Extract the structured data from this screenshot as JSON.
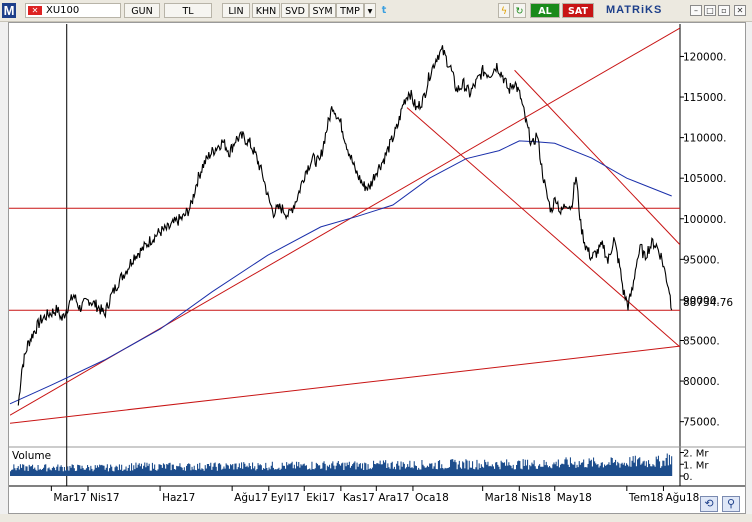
{
  "toolbar": {
    "logo": "M",
    "symbol": "XU100",
    "buttons": [
      "GUN",
      "TL",
      "LIN",
      "KHN",
      "SVD",
      "SYM",
      "TMP"
    ],
    "al": "AL",
    "sat": "SAT",
    "brand": "MATRiKS",
    "colors": {
      "buy": "#1a8a1a",
      "sell": "#c81414",
      "brand": "#1d3f8a"
    }
  },
  "chart_data": {
    "type": "line",
    "series": [
      {
        "kind": "price",
        "color": "#000000",
        "points": [
          [
            "2017-02-01",
            77000
          ],
          [
            "2017-02-04",
            81500
          ],
          [
            "2017-02-09",
            84500
          ],
          [
            "2017-02-14",
            86000
          ],
          [
            "2017-02-20",
            87500
          ],
          [
            "2017-02-27",
            88300
          ],
          [
            "2017-03-06",
            88800
          ],
          [
            "2017-03-10",
            87600
          ],
          [
            "2017-03-15",
            89200
          ],
          [
            "2017-03-20",
            90600
          ],
          [
            "2017-03-25",
            89000
          ],
          [
            "2017-04-02",
            90000
          ],
          [
            "2017-04-10",
            89100
          ],
          [
            "2017-04-15",
            88200
          ],
          [
            "2017-04-20",
            90300
          ],
          [
            "2017-04-27",
            92300
          ],
          [
            "2017-05-04",
            93800
          ],
          [
            "2017-05-10",
            95400
          ],
          [
            "2017-05-17",
            96200
          ],
          [
            "2017-05-24",
            97400
          ],
          [
            "2017-06-01",
            98400
          ],
          [
            "2017-06-08",
            98800
          ],
          [
            "2017-06-14",
            99600
          ],
          [
            "2017-06-21",
            100200
          ],
          [
            "2017-06-27",
            101500
          ],
          [
            "2017-07-02",
            104500
          ],
          [
            "2017-07-07",
            106500
          ],
          [
            "2017-07-13",
            107900
          ],
          [
            "2017-07-18",
            108700
          ],
          [
            "2017-07-24",
            109500
          ],
          [
            "2017-07-30",
            108200
          ],
          [
            "2017-08-04",
            109800
          ],
          [
            "2017-08-10",
            110100
          ],
          [
            "2017-08-16",
            109300
          ],
          [
            "2017-08-21",
            107800
          ],
          [
            "2017-08-27",
            105300
          ],
          [
            "2017-09-01",
            102300
          ],
          [
            "2017-09-05",
            100800
          ],
          [
            "2017-09-11",
            101400
          ],
          [
            "2017-09-18",
            100400
          ],
          [
            "2017-09-25",
            102600
          ],
          [
            "2017-10-02",
            105800
          ],
          [
            "2017-10-08",
            107400
          ],
          [
            "2017-10-14",
            106900
          ],
          [
            "2017-10-19",
            110400
          ],
          [
            "2017-10-25",
            114000
          ],
          [
            "2017-11-01",
            111700
          ],
          [
            "2017-11-06",
            109100
          ],
          [
            "2017-11-13",
            106000
          ],
          [
            "2017-11-20",
            104100
          ],
          [
            "2017-11-25",
            103800
          ],
          [
            "2017-12-01",
            105900
          ],
          [
            "2017-12-07",
            107200
          ],
          [
            "2017-12-14",
            109600
          ],
          [
            "2017-12-19",
            111400
          ],
          [
            "2017-12-24",
            114300
          ],
          [
            "2017-12-29",
            115700
          ],
          [
            "2018-01-04",
            113500
          ],
          [
            "2018-01-10",
            114800
          ],
          [
            "2018-01-15",
            117700
          ],
          [
            "2018-01-22",
            120200
          ],
          [
            "2018-01-26",
            120700
          ],
          [
            "2018-02-02",
            118500
          ],
          [
            "2018-02-07",
            115800
          ],
          [
            "2018-02-13",
            116600
          ],
          [
            "2018-02-18",
            115400
          ],
          [
            "2018-02-24",
            116900
          ],
          [
            "2018-03-01",
            118200
          ],
          [
            "2018-03-07",
            117800
          ],
          [
            "2018-03-13",
            118900
          ],
          [
            "2018-03-18",
            117600
          ],
          [
            "2018-03-23",
            115800
          ],
          [
            "2018-03-28",
            116900
          ],
          [
            "2018-04-02",
            115000
          ],
          [
            "2018-04-07",
            111700
          ],
          [
            "2018-04-12",
            108900
          ],
          [
            "2018-04-16",
            110500
          ],
          [
            "2018-04-20",
            106300
          ],
          [
            "2018-04-24",
            103000
          ],
          [
            "2018-04-28",
            101000
          ],
          [
            "2018-05-02",
            102700
          ],
          [
            "2018-05-06",
            100700
          ],
          [
            "2018-05-11",
            102000
          ],
          [
            "2018-05-15",
            101400
          ],
          [
            "2018-05-19",
            105300
          ],
          [
            "2018-05-23",
            99200
          ],
          [
            "2018-05-27",
            96700
          ],
          [
            "2018-06-01",
            95200
          ],
          [
            "2018-06-06",
            95900
          ],
          [
            "2018-06-11",
            96800
          ],
          [
            "2018-06-15",
            94700
          ],
          [
            "2018-06-20",
            97500
          ],
          [
            "2018-06-25",
            94100
          ],
          [
            "2018-06-28",
            91100
          ],
          [
            "2018-07-02",
            89300
          ],
          [
            "2018-07-06",
            91400
          ],
          [
            "2018-07-09",
            94600
          ],
          [
            "2018-07-13",
            96500
          ],
          [
            "2018-07-16",
            95200
          ],
          [
            "2018-07-19",
            96200
          ],
          [
            "2018-07-23",
            97100
          ],
          [
            "2018-07-26",
            96700
          ],
          [
            "2018-07-30",
            95400
          ],
          [
            "2018-08-02",
            93600
          ],
          [
            "2018-08-06",
            91200
          ],
          [
            "2018-08-08",
            88734.76
          ]
        ]
      },
      {
        "kind": "moving-average",
        "color": "#1a2faa",
        "points": [
          [
            "2017-01-25",
            77200
          ],
          [
            "2017-03-01",
            79500
          ],
          [
            "2017-04-15",
            82600
          ],
          [
            "2017-06-01",
            86400
          ],
          [
            "2017-07-15",
            91000
          ],
          [
            "2017-08-31",
            95500
          ],
          [
            "2017-10-15",
            99000
          ],
          [
            "2017-11-15",
            100300
          ],
          [
            "2017-12-15",
            101700
          ],
          [
            "2018-01-15",
            105000
          ],
          [
            "2018-02-15",
            107400
          ],
          [
            "2018-03-15",
            108400
          ],
          [
            "2018-04-01",
            109600
          ],
          [
            "2018-04-15",
            109500
          ],
          [
            "2018-05-01",
            109300
          ],
          [
            "2018-06-01",
            107500
          ],
          [
            "2018-07-01",
            105000
          ],
          [
            "2018-08-08",
            102800
          ]
        ]
      }
    ],
    "lines": [
      {
        "kind": "horizontal",
        "color": "#c81414",
        "y": 101300
      },
      {
        "kind": "horizontal",
        "color": "#c81414",
        "y": 88734.76
      },
      {
        "kind": "trend",
        "color": "#c81414",
        "from": [
          "2017-01-25",
          74800
        ],
        "to": [
          "2018-08-15",
          84300
        ]
      },
      {
        "kind": "trend",
        "color": "#c81414",
        "from": [
          "2017-01-25",
          75800
        ],
        "to": [
          "2018-08-15",
          123500
        ]
      },
      {
        "kind": "trend",
        "color": "#c81414",
        "from": [
          "2017-12-27",
          113700
        ],
        "to": [
          "2018-08-15",
          84200
        ]
      },
      {
        "kind": "trend",
        "color": "#c81414",
        "from": [
          "2018-03-28",
          118300
        ],
        "to": [
          "2018-08-15",
          96800
        ]
      }
    ],
    "cursor_date": "2017-03-14",
    "x_range": [
      "2017-01-25",
      "2018-08-15"
    ],
    "ylim": [
      72000,
      124000
    ],
    "y_ticks": [
      120000,
      115000,
      110000,
      105000,
      100000,
      95000,
      90000,
      85000,
      80000,
      75000
    ],
    "y_tick_labels": [
      "120000.",
      "115000.",
      "110000.",
      "105000.",
      "100000.",
      "95000.",
      "90000.",
      "85000.",
      "80000.",
      "75000."
    ],
    "last_value": 88734.76,
    "last_value_label": "88734.76",
    "x_tick_labels": [
      "Mar17",
      "Nis17",
      "Haz17",
      "Ağu17",
      "Eyl17",
      "Eki17",
      "Kas17",
      "Ara17",
      "Oca18",
      "Mar18",
      "Nis18",
      "May18",
      "Tem18",
      "Ağu18"
    ],
    "x_tick_dates": [
      "2017-03-01",
      "2017-04-01",
      "2017-06-01",
      "2017-08-01",
      "2017-09-01",
      "2017-10-01",
      "2017-11-01",
      "2017-12-01",
      "2018-01-01",
      "2018-03-01",
      "2018-04-01",
      "2018-05-01",
      "2018-07-01",
      "2018-08-01"
    ],
    "grid": false,
    "volume": {
      "title": "Volume",
      "color": "#1d4d8c",
      "ylim": [
        0,
        2300000
      ],
      "y_tick_labels": [
        "2. Mr",
        "1. Mr",
        "0."
      ],
      "y_ticks": [
        2000000,
        1000000,
        0
      ],
      "level_by_period": [
        [
          "2017-01-25",
          700000
        ],
        [
          "2017-05-01",
          800000
        ],
        [
          "2017-08-01",
          850000
        ],
        [
          "2017-10-01",
          900000
        ],
        [
          "2017-12-01",
          950000
        ],
        [
          "2018-02-01",
          1000000
        ],
        [
          "2018-05-01",
          1100000
        ],
        [
          "2018-07-01",
          1200000
        ],
        [
          "2018-08-01",
          1500000
        ],
        [
          "2018-08-08",
          2100000
        ]
      ]
    }
  }
}
